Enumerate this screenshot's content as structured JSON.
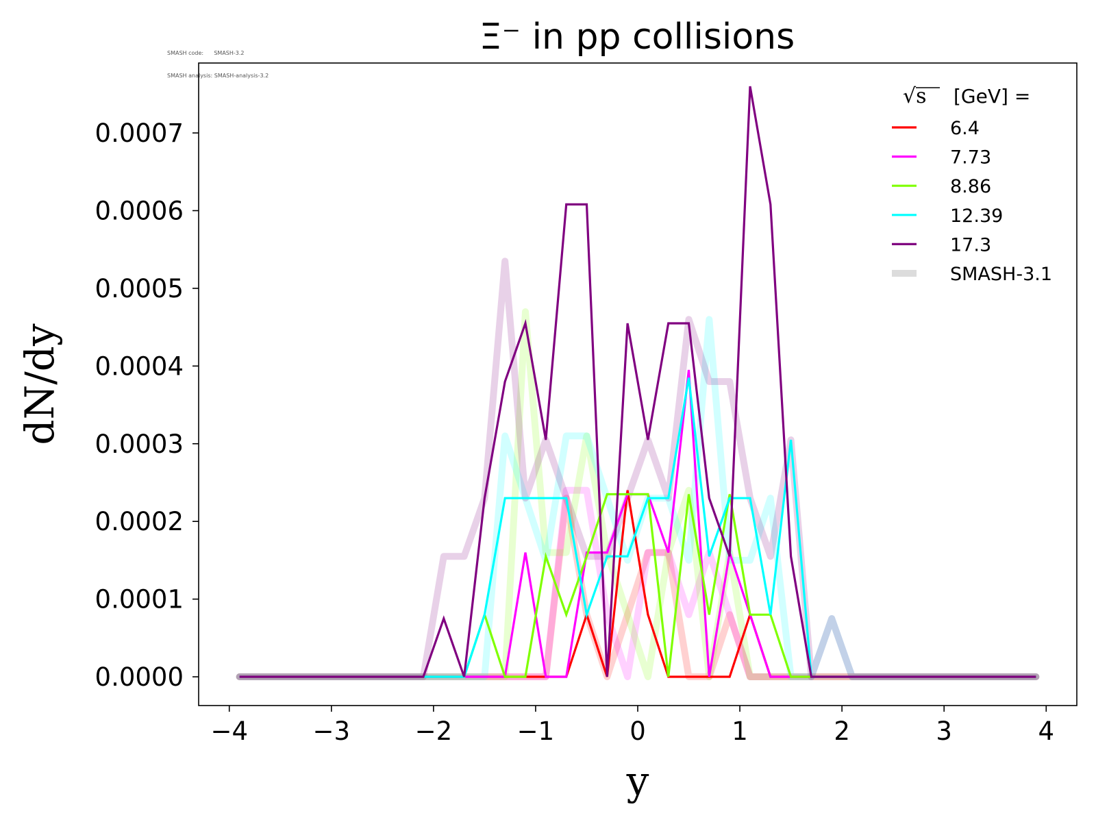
{
  "meta": {
    "line1_label": "SMASH code:",
    "line1_value": "SMASH-3.2",
    "line2_label": "SMASH analysis:",
    "line2_value": "SMASH-analysis-3.2"
  },
  "chart_data": {
    "type": "line",
    "title": "Ξ⁻ in pp collisions",
    "xlabel": "y",
    "ylabel": "dN/dy",
    "xlim": [
      -4.3,
      4.3
    ],
    "ylim": [
      -3.7e-05,
      0.00079
    ],
    "xticks": [
      -4,
      -3,
      -2,
      -1,
      0,
      1,
      2,
      3,
      4
    ],
    "xtick_labels": [
      "−4",
      "−3",
      "−2",
      "−1",
      "0",
      "1",
      "2",
      "3",
      "4"
    ],
    "yticks": [
      0.0,
      0.0001,
      0.0002,
      0.0003,
      0.0004,
      0.0005,
      0.0006,
      0.0007
    ],
    "ytick_labels": [
      "0.0000",
      "0.0001",
      "0.0002",
      "0.0003",
      "0.0004",
      "0.0005",
      "0.0006",
      "0.0007"
    ],
    "grid": false,
    "legend": {
      "placement": "top-right",
      "title": "[GeV] =",
      "title_symbol": "√s",
      "reference_label": "SMASH-3.1"
    },
    "x": [
      -3.9,
      -3.7,
      -3.5,
      -3.3,
      -3.1,
      -2.9,
      -2.7,
      -2.5,
      -2.3,
      -2.1,
      -1.9,
      -1.7,
      -1.5,
      -1.3,
      -1.1,
      -0.9,
      -0.7,
      -0.5,
      -0.3,
      -0.1,
      0.1,
      0.3,
      0.5,
      0.7,
      0.9,
      1.1,
      1.3,
      1.5,
      1.7,
      1.9,
      2.1,
      2.3,
      2.5,
      2.7,
      2.9,
      3.1,
      3.3,
      3.5,
      3.7,
      3.9
    ],
    "series": [
      {
        "name": "6.4",
        "color": "#ff0000",
        "values": [
          0,
          0,
          0,
          0,
          0,
          0,
          0,
          0,
          0,
          0,
          0,
          0,
          0,
          0,
          0,
          0,
          0,
          8e-05,
          0,
          0.00024,
          8e-05,
          0,
          0,
          0,
          0,
          8e-05,
          0,
          0,
          0,
          0,
          0,
          0,
          0,
          0,
          0,
          0,
          0,
          0,
          0,
          0
        ]
      },
      {
        "name": "7.73",
        "color": "#ff00ff",
        "values": [
          0,
          0,
          0,
          0,
          0,
          0,
          0,
          0,
          0,
          0,
          0,
          0,
          0,
          0,
          0.00016,
          0,
          0,
          0.00016,
          0.00016,
          0.000235,
          0.000235,
          0.00016,
          0.000395,
          0,
          0.00016,
          8e-05,
          0,
          0,
          0,
          0,
          0,
          0,
          0,
          0,
          0,
          0,
          0,
          0,
          0,
          0
        ]
      },
      {
        "name": "8.86",
        "color": "#7fff00",
        "values": [
          0,
          0,
          0,
          0,
          0,
          0,
          0,
          0,
          0,
          0,
          0,
          0,
          8e-05,
          0,
          0,
          0.000155,
          8e-05,
          0.000155,
          0.000235,
          0.000235,
          0.000235,
          0,
          0.000235,
          8e-05,
          0.000235,
          8e-05,
          8e-05,
          0,
          0,
          0,
          0,
          0,
          0,
          0,
          0,
          0,
          0,
          0,
          0,
          0
        ]
      },
      {
        "name": "12.39",
        "color": "#00ffff",
        "values": [
          0,
          0,
          0,
          0,
          0,
          0,
          0,
          0,
          0,
          0,
          0,
          0,
          8e-05,
          0.00023,
          0.00023,
          0.00023,
          0.00023,
          8e-05,
          0.000155,
          0.000155,
          0.00023,
          0.00023,
          0.000385,
          0.000155,
          0.00023,
          0.00023,
          8e-05,
          0.000305,
          0,
          0,
          0,
          0,
          0,
          0,
          0,
          0,
          0,
          0,
          0,
          0
        ]
      },
      {
        "name": "17.3",
        "color": "#800080",
        "values": [
          0,
          0,
          0,
          0,
          0,
          0,
          0,
          0,
          0,
          0,
          7.5e-05,
          0,
          0.00023,
          0.00038,
          0.000455,
          0.000305,
          0.000608,
          0.000608,
          0,
          0.000455,
          0.000305,
          0.000455,
          0.000455,
          0.00023,
          0.000155,
          0.00076,
          0.000608,
          0.000155,
          0,
          0,
          0,
          0,
          0,
          0,
          0,
          0,
          0,
          0,
          0,
          0
        ]
      }
    ],
    "reference_series": [
      {
        "name": "6.4 (SMASH-3.1)",
        "color": "#ff0000",
        "values": [
          0,
          0,
          0,
          0,
          0,
          0,
          0,
          0,
          0,
          0,
          0,
          0,
          0,
          0,
          0,
          0,
          0.00023,
          8e-05,
          0,
          8e-05,
          0.00016,
          0.00016,
          0,
          0,
          8e-05,
          0,
          0,
          0,
          0,
          0,
          0,
          0,
          0,
          0,
          0,
          0,
          0,
          0,
          0,
          0
        ]
      },
      {
        "name": "7.73 (SMASH-3.1)",
        "color": "#ff00ff",
        "values": [
          0,
          0,
          0,
          0,
          0,
          0,
          0,
          0,
          0,
          0,
          0,
          0,
          0,
          0,
          0,
          0,
          0.00024,
          0.00024,
          8e-05,
          0,
          0.00016,
          0.00016,
          8e-05,
          0.00016,
          8e-05,
          0,
          0,
          0,
          0,
          0,
          0,
          0,
          0,
          0,
          0,
          0,
          0,
          0,
          0,
          0
        ]
      },
      {
        "name": "8.86 (SMASH-3.1)",
        "color": "#7fff00",
        "values": [
          0,
          0,
          0,
          0,
          0,
          0,
          0,
          0,
          0,
          0,
          0,
          0,
          0,
          0,
          0.00047,
          0.00016,
          0.00016,
          0.00031,
          0.00016,
          8e-05,
          0,
          0.00016,
          0.00024,
          0,
          0.00016,
          0,
          0,
          0,
          0,
          0,
          0,
          0,
          0,
          0,
          0,
          0,
          0,
          0,
          0,
          0
        ]
      },
      {
        "name": "12.39 (SMASH-3.1)",
        "color": "#00ffff",
        "values": [
          0,
          0,
          0,
          0,
          0,
          0,
          0,
          0,
          0,
          0,
          0,
          0,
          0,
          0.00031,
          0.00023,
          0.00015,
          0.00031,
          0.00031,
          0.00023,
          0.00015,
          0.00023,
          0.00023,
          0.00015,
          0.00046,
          0.00015,
          0.00015,
          0.00023,
          0,
          0,
          7.5e-05,
          0,
          0,
          0,
          0,
          0,
          0,
          0,
          0,
          0,
          0
        ]
      },
      {
        "name": "17.3 (SMASH-3.1)",
        "color": "#800080",
        "values": [
          0,
          0,
          0,
          0,
          0,
          0,
          0,
          0,
          0,
          0,
          0.000155,
          0.000155,
          0.00023,
          0.000535,
          0.00023,
          0.000305,
          0.00023,
          0.000155,
          0.000155,
          0.00023,
          0.000305,
          0.00023,
          0.00046,
          0.00038,
          0.00038,
          0.00023,
          0.000155,
          0.000305,
          0,
          7.5e-05,
          0,
          0,
          0,
          0,
          0,
          0,
          0,
          0,
          0,
          0
        ]
      }
    ]
  }
}
